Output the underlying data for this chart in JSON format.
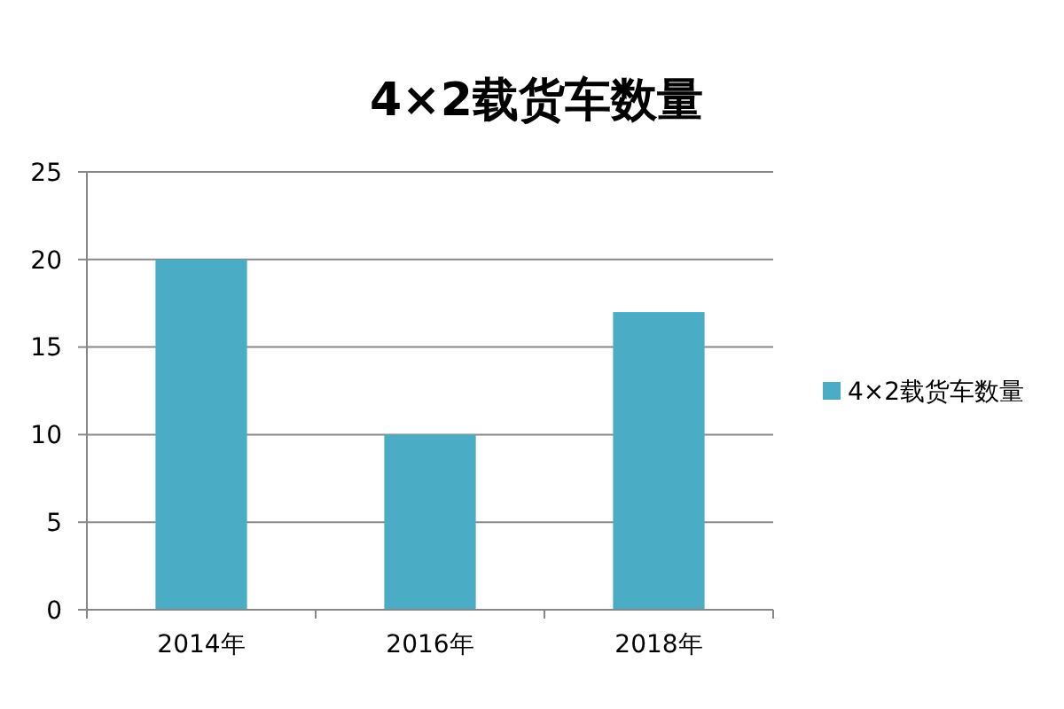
{
  "chart_data": {
    "type": "bar",
    "title": "4×2载货车数量",
    "categories": [
      "2014年",
      "2016年",
      "2018年"
    ],
    "series": [
      {
        "name": "4×2载货车数量",
        "color": "#4bacc6",
        "values": [
          20,
          10,
          17
        ]
      }
    ],
    "ylim": [
      0,
      25
    ],
    "yticks": [
      0,
      5,
      10,
      15,
      20,
      25
    ],
    "grid": "y",
    "legend": "right"
  }
}
